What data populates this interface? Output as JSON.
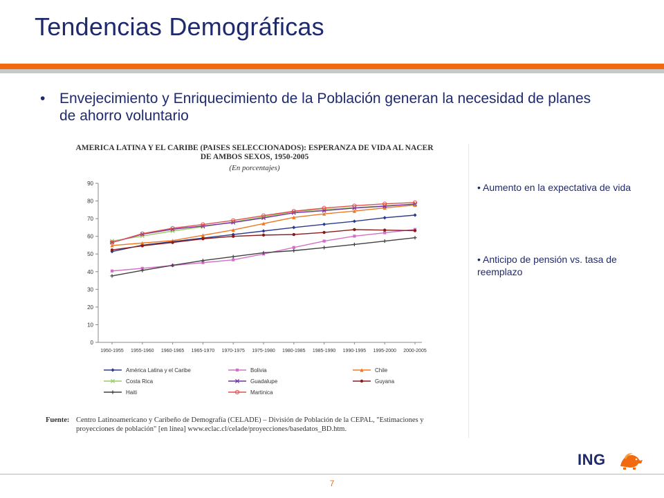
{
  "slide": {
    "title": "Tendencias Demográficas",
    "bullet": "Envejecimiento y Enriquecimiento de la Población generan la necesidad de planes de ahorro voluntario",
    "bullet_marker": "•",
    "side_points": [
      "• Aumento en la expectativa de vida",
      "• Anticipo de pensión vs. tasa de reemplazo"
    ],
    "page_number": "7",
    "logo_text": "ING",
    "colors": {
      "title": "#1f2a6e",
      "accent": "#f26a10",
      "rule_grey": "#c8c8c8"
    }
  },
  "chart_data": {
    "type": "line",
    "title": "AMERICA LATINA Y EL CARIBE (PAISES SELECCIONADOS): ESPERANZA DE VIDA AL NACER DE AMBOS SEXOS, 1950-2005",
    "subtitle": "(En porcentajes)",
    "xlabel": "",
    "ylabel": "",
    "ylim": [
      0,
      90
    ],
    "yticks": [
      0,
      10,
      20,
      30,
      40,
      50,
      60,
      70,
      80,
      90
    ],
    "grid": false,
    "legend_position": "bottom",
    "categories": [
      "1950-1955",
      "1955-1960",
      "1960-1965",
      "1965-1970",
      "1970-1975",
      "1975-1980",
      "1980-1985",
      "1985-1990",
      "1990-1995",
      "1995-2000",
      "2000-2005"
    ],
    "series": [
      {
        "name": "América Latina  y el Caribe",
        "color": "#2b3a8c",
        "marker": "diamond",
        "values": [
          51.4,
          55.0,
          57.0,
          59.0,
          61.0,
          63.0,
          65.0,
          66.8,
          68.5,
          70.5,
          72.0
        ]
      },
      {
        "name": "Bolivia",
        "color": "#d070c8",
        "marker": "square",
        "values": [
          40.4,
          41.9,
          43.5,
          45.1,
          46.7,
          50.0,
          53.7,
          57.3,
          60.1,
          62.0,
          63.9
        ]
      },
      {
        "name": "Chile",
        "color": "#f07820",
        "marker": "triangle",
        "values": [
          54.8,
          56.2,
          57.6,
          60.6,
          63.6,
          67.2,
          70.7,
          72.7,
          74.3,
          76.1,
          77.7
        ]
      },
      {
        "name": "Costa Rica",
        "color": "#99cc66",
        "marker": "x",
        "values": [
          57.3,
          60.2,
          63.0,
          65.4,
          68.1,
          71.0,
          74.0,
          75.2,
          76.2,
          77.3,
          78.1
        ]
      },
      {
        "name": "Guadalupe",
        "color": "#7030a0",
        "marker": "x",
        "values": [
          56.5,
          61.2,
          64.0,
          65.8,
          67.8,
          70.4,
          73.3,
          74.5,
          76.0,
          77.0,
          78.3
        ]
      },
      {
        "name": "Guyana",
        "color": "#8b1a1a",
        "marker": "circle",
        "values": [
          52.3,
          54.6,
          56.5,
          58.6,
          60.0,
          60.7,
          61.0,
          62.2,
          63.8,
          63.5,
          63.2
        ]
      },
      {
        "name": "Haiti",
        "color": "#404040",
        "marker": "plus",
        "values": [
          37.6,
          40.7,
          43.6,
          46.3,
          48.5,
          50.7,
          51.9,
          53.6,
          55.4,
          57.3,
          59.2
        ]
      },
      {
        "name": "Martinica",
        "color": "#e05050",
        "marker": "circle-open",
        "values": [
          56.5,
          61.5,
          64.6,
          66.7,
          69.0,
          71.7,
          74.2,
          76.0,
          77.3,
          78.4,
          79.1
        ]
      }
    ],
    "source_label": "Fuente:",
    "source_text": "Centro Latinoamericano y Caribeño de Demografía (CELADE) – División de Población de la CEPAL, \"Estimaciones y proyecciones de población\" [en línea] www.eclac.cl/celade/proyecciones/basedatos_BD.htm."
  }
}
